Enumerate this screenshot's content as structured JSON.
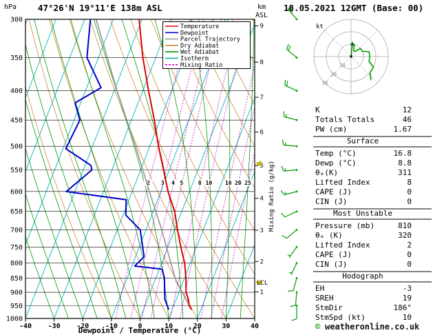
{
  "colors": {
    "temperature": "#dd0000",
    "dewpoint": "#0000cc",
    "parcel": "#999999",
    "dry_adiabat": "#cc8833",
    "wet_adiabat": "#009900",
    "isotherm": "#00b3b3",
    "mixing_ratio": "#cc00cc",
    "wind_barb": "#009900",
    "grid": "#000000",
    "marker_arrow": "#c2b200",
    "hodo_grid": "#aaaaaa"
  },
  "header": {
    "left_unit": "hPa",
    "station": "47°26'N 19°11'E 138m ASL",
    "datetime": "18.05.2021 12GMT (Base: 00)"
  },
  "legend": {
    "items": [
      {
        "label": "Temperature",
        "color_key": "temperature",
        "dashed": false
      },
      {
        "label": "Dewpoint",
        "color_key": "dewpoint",
        "dashed": false
      },
      {
        "label": "Parcel Trajectory",
        "color_key": "parcel",
        "dashed": false
      },
      {
        "label": "Dry Adiabat",
        "color_key": "dry_adiabat",
        "dashed": false
      },
      {
        "label": "Wet Adiabat",
        "color_key": "wet_adiabat",
        "dashed": false
      },
      {
        "label": "Isotherm",
        "color_key": "isotherm",
        "dashed": false
      },
      {
        "label": "Mixing Ratio",
        "color_key": "mixing_ratio",
        "dashed": true
      }
    ]
  },
  "axes": {
    "x_label": "Dewpoint / Temperature (°C)",
    "km_label_line1": "km",
    "km_label_line2": "ASL",
    "km_ticks": [
      1,
      2,
      3,
      4,
      5,
      6,
      7,
      8,
      9
    ],
    "mixing_label": "Mixing Ratio (g/kg)",
    "lcl_label": "LCL"
  },
  "hodograph": {
    "unit": "kt",
    "rings": [
      10,
      20,
      30
    ],
    "ring_labels": [
      "10",
      "20",
      "30"
    ],
    "storm": {
      "dir": 186,
      "spd": 10
    }
  },
  "table": {
    "sections": [
      {
        "header": null,
        "rows": [
          [
            "K",
            "12"
          ],
          [
            "Totals Totals",
            "46"
          ],
          [
            "PW (cm)",
            "1.67"
          ]
        ]
      },
      {
        "header": "Surface",
        "rows": [
          [
            "Temp (°C)",
            "16.8"
          ],
          [
            "Dewp (°C)",
            "8.8"
          ],
          [
            "θₑ(K)",
            "311"
          ],
          [
            "Lifted Index",
            "8"
          ],
          [
            "CAPE (J)",
            "0"
          ],
          [
            "CIN (J)",
            "0"
          ]
        ]
      },
      {
        "header": "Most Unstable",
        "rows": [
          [
            "Pressure (mb)",
            "810"
          ],
          [
            "θₑ (K)",
            "320"
          ],
          [
            "Lifted Index",
            "2"
          ],
          [
            "CAPE (J)",
            "0"
          ],
          [
            "CIN (J)",
            "0"
          ]
        ]
      },
      {
        "header": "Hodograph",
        "rows": [
          [
            "EH",
            "-3"
          ],
          [
            "SREH",
            "19"
          ],
          [
            "StmDir",
            "186°"
          ],
          [
            "StmSpd (kt)",
            "10"
          ]
        ]
      }
    ]
  },
  "footer": {
    "copyright_symbol": "©",
    "copyright_text": "weatheronline.co.uk"
  },
  "chart_data": {
    "type": "skewt_sounding",
    "pressure_axis_hpa": {
      "min": 300,
      "max": 1000,
      "ticks": [
        300,
        350,
        400,
        450,
        500,
        550,
        600,
        650,
        700,
        750,
        800,
        850,
        900,
        950,
        1000
      ]
    },
    "temp_axis_c": {
      "min": -40,
      "max": 40,
      "ticks": [
        -40,
        -30,
        -20,
        -10,
        0,
        10,
        20,
        30,
        40
      ]
    },
    "mixing_ratio_lines_gkg": [
      2,
      3,
      4,
      5,
      8,
      10,
      16,
      20,
      25
    ],
    "lcl_pressure_hpa": 865,
    "marker_pressures": [
      536,
      865
    ],
    "series": [
      {
        "name": "Temperature",
        "color_key": "temperature",
        "points": [
          [
            965,
            16.8
          ],
          [
            950,
            15.4
          ],
          [
            925,
            14.2
          ],
          [
            900,
            12.5
          ],
          [
            850,
            10.5
          ],
          [
            800,
            8.0
          ],
          [
            750,
            4.5
          ],
          [
            700,
            1.0
          ],
          [
            650,
            -2.5
          ],
          [
            600,
            -7.5
          ],
          [
            550,
            -12.0
          ],
          [
            500,
            -17.0
          ],
          [
            450,
            -22.0
          ],
          [
            400,
            -28.0
          ],
          [
            350,
            -34.5
          ],
          [
            300,
            -41.0
          ]
        ]
      },
      {
        "name": "Dewpoint",
        "color_key": "dewpoint",
        "points": [
          [
            965,
            8.8
          ],
          [
            925,
            6.0
          ],
          [
            850,
            3.0
          ],
          [
            820,
            1.0
          ],
          [
            810,
            -9.0
          ],
          [
            780,
            -7.0
          ],
          [
            700,
            -12.0
          ],
          [
            660,
            -19.0
          ],
          [
            620,
            -21.0
          ],
          [
            600,
            -43.0
          ],
          [
            550,
            -37.0
          ],
          [
            540,
            -38.0
          ],
          [
            505,
            -49.0
          ],
          [
            450,
            -48.0
          ],
          [
            420,
            -52.0
          ],
          [
            395,
            -45.0
          ],
          [
            350,
            -54.0
          ],
          [
            300,
            -58.0
          ]
        ]
      },
      {
        "name": "Parcel Trajectory",
        "color_key": "parcel",
        "points": [
          [
            965,
            16.8
          ],
          [
            900,
            11.1
          ],
          [
            862,
            7.6
          ],
          [
            800,
            3.2
          ],
          [
            700,
            -4.5
          ],
          [
            600,
            -14.0
          ],
          [
            500,
            -25.0
          ],
          [
            400,
            -39.0
          ],
          [
            300,
            -56.0
          ]
        ]
      }
    ],
    "winds": [
      {
        "p": 950,
        "dir": 180,
        "spd": 10
      },
      {
        "p": 900,
        "dir": 185,
        "spd": 10
      },
      {
        "p": 850,
        "dir": 195,
        "spd": 10
      },
      {
        "p": 800,
        "dir": 205,
        "spd": 5
      },
      {
        "p": 750,
        "dir": 215,
        "spd": 5
      },
      {
        "p": 700,
        "dir": 230,
        "spd": 10
      },
      {
        "p": 650,
        "dir": 245,
        "spd": 10
      },
      {
        "p": 600,
        "dir": 255,
        "spd": 15
      },
      {
        "p": 550,
        "dir": 265,
        "spd": 15
      },
      {
        "p": 500,
        "dir": 275,
        "spd": 15
      },
      {
        "p": 450,
        "dir": 285,
        "spd": 15
      },
      {
        "p": 400,
        "dir": 295,
        "spd": 20
      },
      {
        "p": 350,
        "dir": 310,
        "spd": 20
      },
      {
        "p": 300,
        "dir": 320,
        "spd": 25
      }
    ]
  }
}
